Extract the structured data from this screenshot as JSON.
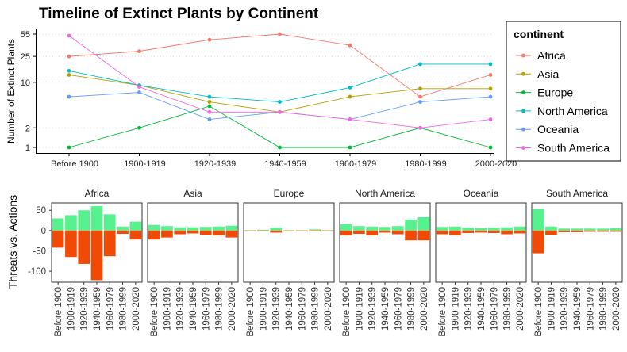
{
  "chart_data": [
    {
      "type": "line",
      "title": "Timeline of Extinct Plants by Continent",
      "ylabel": "Number of Extinct Plants",
      "xlabel": "",
      "y_scale": "log",
      "y_ticks": [
        1,
        2,
        10,
        25,
        55
      ],
      "grid": "horizontal dotted",
      "categories": [
        "Before 1900",
        "1900-1919",
        "1920-1939",
        "1940-1959",
        "1960-1979",
        "1980-1999",
        "2000-2020"
      ],
      "legend": {
        "title": "continent",
        "position": "right"
      },
      "series": [
        {
          "name": "Africa",
          "color": "#F8766D",
          "values": [
            25,
            30,
            45,
            55,
            37,
            6,
            13
          ]
        },
        {
          "name": "Asia",
          "color": "#B79F00",
          "values": [
            13,
            9,
            5,
            3.5,
            6,
            8,
            8
          ]
        },
        {
          "name": "Europe",
          "color": "#00BA38",
          "values": [
            1,
            2,
            4.3,
            1,
            1,
            2,
            1
          ]
        },
        {
          "name": "North America",
          "color": "#00BFC4",
          "values": [
            15,
            9,
            6,
            5,
            8.3,
            19,
            19
          ]
        },
        {
          "name": "Oceania",
          "color": "#619CFF",
          "values": [
            6,
            7,
            2.7,
            3.5,
            2.7,
            5,
            6
          ]
        },
        {
          "name": "South America",
          "color": "#F564E3",
          "values": [
            52,
            8.5,
            3.5,
            3.5,
            2.7,
            2,
            2.7
          ]
        }
      ]
    },
    {
      "type": "bar",
      "ylabel": "Threats vs. Actions",
      "y_ticks": [
        50,
        0,
        -50,
        -100
      ],
      "ylim": [
        -127,
        68
      ],
      "categories": [
        "Before 1900",
        "1900-1919",
        "1920-1939",
        "1940-1959",
        "1960-1979",
        "1980-1999",
        "2000-2020"
      ],
      "positive_color": "#57F28F",
      "negative_color": "#F04A06",
      "facets": [
        {
          "name": "Africa",
          "positive": [
            30,
            38,
            50,
            60,
            40,
            10,
            22
          ],
          "negative": [
            -42,
            -65,
            -82,
            -122,
            -63,
            -8,
            -22
          ]
        },
        {
          "name": "Asia",
          "positive": [
            14,
            11,
            8,
            8,
            9,
            10,
            12
          ],
          "negative": [
            -22,
            -17,
            -9,
            -7,
            -10,
            -12,
            -17
          ]
        },
        {
          "name": "Europe",
          "positive": [
            1,
            2,
            7,
            1,
            1,
            3,
            1
          ],
          "negative": [
            -1,
            -1,
            -5,
            -1,
            -1,
            -2,
            -1
          ]
        },
        {
          "name": "North America",
          "positive": [
            16,
            11,
            10,
            9,
            11,
            27,
            33
          ],
          "negative": [
            -12,
            -8,
            -12,
            -5,
            -9,
            -24,
            -24
          ]
        },
        {
          "name": "Oceania",
          "positive": [
            9,
            10,
            7,
            6,
            7,
            8,
            10
          ],
          "negative": [
            -9,
            -11,
            -6,
            -5,
            -6,
            -9,
            -7
          ]
        },
        {
          "name": "South America",
          "positive": [
            53,
            10,
            5,
            5,
            5,
            5,
            6
          ],
          "negative": [
            -56,
            -10,
            -4,
            -4,
            -3,
            -3,
            -3
          ]
        }
      ]
    }
  ]
}
